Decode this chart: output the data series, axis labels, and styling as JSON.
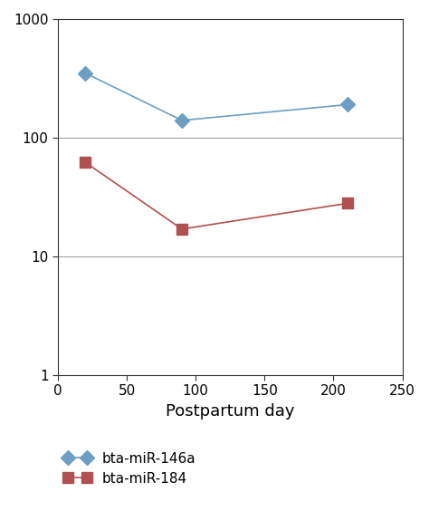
{
  "series": [
    {
      "label": "bta-miR-146a",
      "x": [
        20,
        90,
        210
      ],
      "y": [
        350,
        140,
        190
      ],
      "color": "#6d9ec4",
      "marker": "D",
      "linestyle": "-"
    },
    {
      "label": "bta-miR-184",
      "x": [
        20,
        90,
        210
      ],
      "y": [
        62,
        17,
        28
      ],
      "color": "#b05050",
      "marker": "s",
      "linestyle": "-"
    }
  ],
  "xlabel": "Postpartum day",
  "xlim": [
    0,
    240
  ],
  "ylim_log": [
    1,
    1000
  ],
  "xticks": [
    0,
    50,
    100,
    150,
    200,
    250
  ],
  "yticks_log": [
    1,
    10,
    100,
    1000
  ],
  "background_color": "#ffffff",
  "grid_color": "#999999",
  "marker_size": 8,
  "linewidth": 1.2,
  "xlabel_fontsize": 13,
  "tick_fontsize": 11,
  "legend_fontsize": 11
}
